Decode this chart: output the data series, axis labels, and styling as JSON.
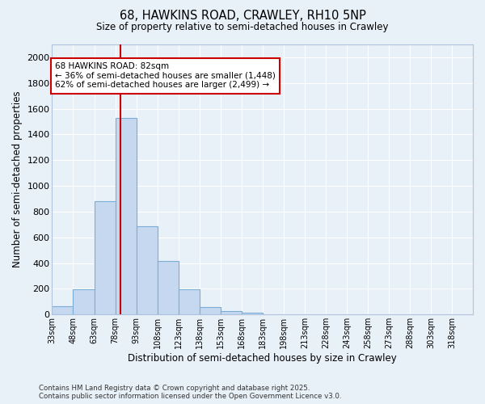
{
  "title_line1": "68, HAWKINS ROAD, CRAWLEY, RH10 5NP",
  "title_line2": "Size of property relative to semi-detached houses in Crawley",
  "xlabel": "Distribution of semi-detached houses by size in Crawley",
  "ylabel": "Number of semi-detached properties",
  "annotation_line1": "68 HAWKINS ROAD: 82sqm",
  "annotation_line2": "← 36% of semi-detached houses are smaller (1,448)",
  "annotation_line3": "62% of semi-detached houses are larger (2,499) →",
  "property_size": 82,
  "bin_edges": [
    33,
    48,
    63,
    78,
    93,
    108,
    123,
    138,
    153,
    168,
    183,
    198,
    213,
    228,
    243,
    258,
    273,
    288,
    303,
    318,
    333
  ],
  "bar_heights": [
    65,
    195,
    880,
    1530,
    685,
    415,
    195,
    60,
    30,
    15,
    0,
    0,
    0,
    0,
    0,
    0,
    0,
    0,
    0,
    0
  ],
  "bar_color": "#c5d8f0",
  "bar_edge_color": "#7aaed6",
  "vline_color": "#cc0000",
  "annotation_box_color": "#cc0000",
  "bg_color": "#e8f0f8",
  "grid_color": "#ffffff",
  "ylim": [
    0,
    2100
  ],
  "yticks": [
    0,
    200,
    400,
    600,
    800,
    1000,
    1200,
    1400,
    1600,
    1800,
    2000
  ],
  "footer": "Contains HM Land Registry data © Crown copyright and database right 2025.\nContains public sector information licensed under the Open Government Licence v3.0."
}
